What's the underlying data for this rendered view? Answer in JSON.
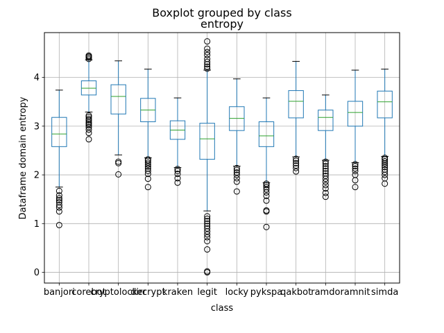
{
  "figure": {
    "suptitle": "Boxplot grouped by class",
    "title": "entropy",
    "xlabel": "class",
    "ylabel": "Dataframe domain entropy"
  },
  "chart_data": {
    "type": "box",
    "title": "entropy",
    "suptitle": "Boxplot grouped by class",
    "xlabel": "class",
    "ylabel": "Dataframe domain entropy",
    "ylim": [
      -0.22,
      4.92
    ],
    "yticks": [
      0,
      1,
      2,
      3,
      4
    ],
    "grid": true,
    "colors": {
      "box": "#1f77b4",
      "median": "#2ca02c",
      "whisker": "#1f77b4",
      "cap": "#000000",
      "flier": "#000000",
      "grid": "#b0b0b0"
    },
    "categories": [
      "banjori",
      "corebot",
      "cryptolocker",
      "dircrypt",
      "kraken",
      "legit",
      "locky",
      "pykspa",
      "qakbot",
      "ramdo",
      "ramnit",
      "simda"
    ],
    "boxes": [
      {
        "category": "banjori",
        "whislo": 1.75,
        "q1": 2.58,
        "med": 2.84,
        "q3": 3.18,
        "whishi": 3.74,
        "fliers": [
          0.97,
          1.25,
          1.33,
          1.38,
          1.44,
          1.48,
          1.52,
          1.58,
          1.67
        ]
      },
      {
        "category": "corebot",
        "whislo": 3.29,
        "q1": 3.64,
        "med": 3.78,
        "q3": 3.93,
        "whishi": 4.36,
        "fliers": [
          2.73,
          2.86,
          2.93,
          2.98,
          3.02,
          3.05,
          3.08,
          3.12,
          3.15,
          3.19,
          3.22,
          4.38,
          4.41,
          4.43,
          4.45
        ]
      },
      {
        "category": "cryptolocker",
        "whislo": 2.41,
        "q1": 3.25,
        "med": 3.61,
        "q3": 3.85,
        "whishi": 4.34,
        "fliers": [
          2.01,
          2.24,
          2.27
        ]
      },
      {
        "category": "dircrypt",
        "whislo": 2.35,
        "q1": 3.09,
        "med": 3.33,
        "q3": 3.57,
        "whishi": 4.17,
        "fliers": [
          1.75,
          1.92,
          2.02,
          2.08,
          2.13,
          2.17,
          2.21,
          2.25,
          2.29,
          2.32
        ]
      },
      {
        "category": "kraken",
        "whislo": 2.15,
        "q1": 2.73,
        "med": 2.92,
        "q3": 3.11,
        "whishi": 3.58,
        "fliers": [
          1.84,
          1.93,
          2.02,
          2.08,
          2.12
        ]
      },
      {
        "category": "legit",
        "whislo": 1.26,
        "q1": 2.32,
        "med": 2.74,
        "q3": 3.06,
        "whishi": 4.15,
        "fliers": [
          0.0,
          0.02,
          0.47,
          0.64,
          0.72,
          0.78,
          0.84,
          0.9,
          0.95,
          1.0,
          1.05,
          1.1,
          1.15,
          4.18,
          4.22,
          4.27,
          4.32,
          4.38,
          4.46,
          4.52,
          4.59,
          4.74
        ]
      },
      {
        "category": "locky",
        "whislo": 2.18,
        "q1": 2.91,
        "med": 3.16,
        "q3": 3.4,
        "whishi": 3.97,
        "fliers": [
          1.66,
          1.86,
          1.93,
          2.0,
          2.05,
          2.1,
          2.14
        ]
      },
      {
        "category": "pykspa",
        "whislo": 1.84,
        "q1": 2.58,
        "med": 2.8,
        "q3": 3.09,
        "whishi": 3.58,
        "fliers": [
          0.93,
          1.25,
          1.27,
          1.47,
          1.57,
          1.64,
          1.7,
          1.75,
          1.79,
          1.82
        ]
      },
      {
        "category": "qakbot",
        "whislo": 2.37,
        "q1": 3.17,
        "med": 3.51,
        "q3": 3.73,
        "whishi": 4.33,
        "fliers": [
          2.07,
          2.14,
          2.19,
          2.24,
          2.29,
          2.33
        ]
      },
      {
        "category": "ramdo",
        "whislo": 2.3,
        "q1": 2.91,
        "med": 3.18,
        "q3": 3.33,
        "whishi": 3.64,
        "fliers": [
          1.55,
          1.63,
          1.72,
          1.79,
          1.86,
          1.92,
          1.98,
          2.03,
          2.08,
          2.13,
          2.18,
          2.23,
          2.27
        ]
      },
      {
        "category": "ramnit",
        "whislo": 2.25,
        "q1": 3.0,
        "med": 3.28,
        "q3": 3.51,
        "whishi": 4.15,
        "fliers": [
          1.75,
          1.89,
          2.0,
          2.08,
          2.13,
          2.18,
          2.22
        ]
      },
      {
        "category": "simda",
        "whislo": 2.38,
        "q1": 3.17,
        "med": 3.5,
        "q3": 3.72,
        "whishi": 4.17,
        "fliers": [
          1.82,
          1.93,
          2.0,
          2.06,
          2.11,
          2.16,
          2.2,
          2.24,
          2.28,
          2.32,
          2.35
        ]
      }
    ]
  }
}
